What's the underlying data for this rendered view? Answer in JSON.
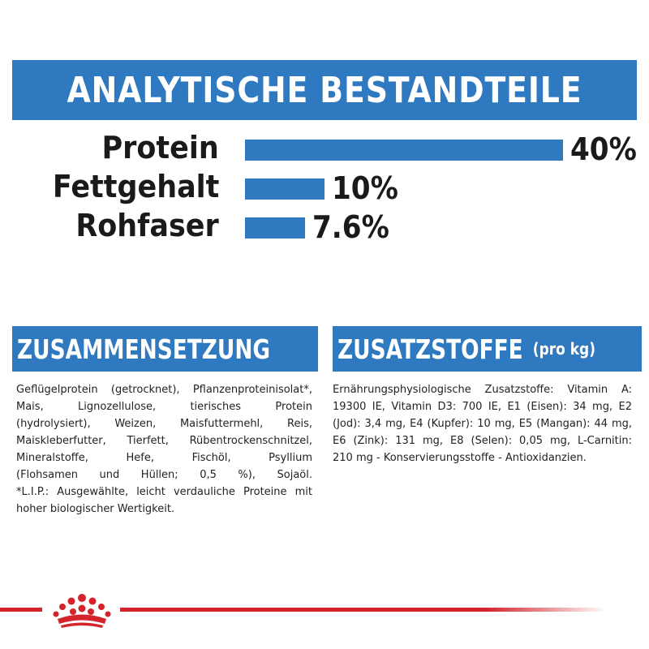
{
  "header": {
    "title": "ANALYTISCHE BESTANDTEILE"
  },
  "chart_data": {
    "type": "bar",
    "orientation": "horizontal",
    "categories": [
      "Protein",
      "Fettgehalt",
      "Rohfaser"
    ],
    "values": [
      40,
      10,
      7.6
    ],
    "value_labels": [
      "40%",
      "10%",
      "7.6%"
    ],
    "unit": "%",
    "xlim": [
      0,
      40
    ],
    "grid": false,
    "bar_color": "#2e79bf"
  },
  "composition": {
    "title": "ZUSAMMENSETZUNG",
    "lines": [
      "Geflügelprotein (getrocknet), Pflanzenproteinisolat*,",
      "Mais, Lignozellulose, tierisches Protein",
      "(hydrolysiert), Weizen, Maisfuttermehl, Reis,",
      "Maiskleberfutter, Tierfett, Rübentrockenschnitzel,",
      "Mineralstoffe, Hefe, Fischöl, Psyllium",
      "(Flohsamen und Hüllen; 0,5 %), Sojaöl.",
      "*L.I.P.: Ausgewählte, leicht verdauliche Proteine mit",
      "hoher biologischer Wertigkeit."
    ]
  },
  "additives": {
    "title": "ZUSATZSTOFFE",
    "subtitle": "(pro kg)",
    "lines": [
      "Ernährungsphysiologische Zusatzstoffe: Vitamin A:",
      "19300 IE, Vitamin D3: 700 IE, E1 (Eisen): 34 mg, E2",
      "(Jod): 3,4 mg, E4 (Kupfer): 10 mg, E5 (Mangan): 44 mg,",
      "E6 (Zink): 131 mg, E8 (Selen): 0,05 mg, L-Carnitin:",
      "210 mg - Konservierungsstoffe - Antioxidanzien."
    ]
  },
  "colors": {
    "accent": "#2e79bf",
    "brand_red": "#d3232b"
  },
  "footer": {
    "logo": "crown-logo-icon"
  }
}
